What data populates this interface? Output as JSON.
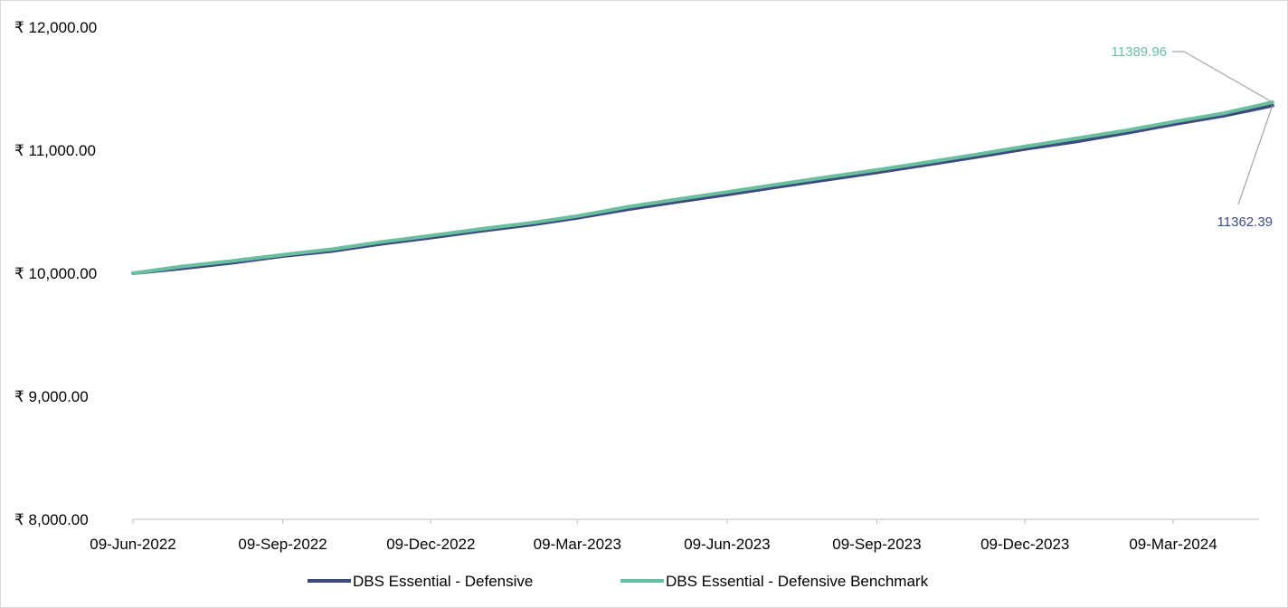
{
  "chart_data": {
    "type": "line",
    "title": "",
    "xlabel": "",
    "ylabel": "",
    "ylim": [
      8000,
      12000
    ],
    "y_ticks": [
      "₹ 8,000.00",
      "₹ 9,000.00",
      "₹ 10,000.00",
      "₹ 11,000.00",
      "₹ 12,000.00"
    ],
    "x_ticks": [
      "09-Jun-2022",
      "09-Sep-2022",
      "09-Dec-2022",
      "09-Mar-2023",
      "09-Jun-2023",
      "09-Sep-2023",
      "09-Dec-2023",
      "09-Mar-2024"
    ],
    "x": [
      "09-Jun-2022",
      "09-Jul-2022",
      "09-Aug-2022",
      "09-Sep-2022",
      "09-Oct-2022",
      "09-Nov-2022",
      "09-Dec-2022",
      "09-Jan-2023",
      "09-Feb-2023",
      "09-Mar-2023",
      "09-Apr-2023",
      "09-May-2023",
      "09-Jun-2023",
      "09-Jul-2023",
      "09-Aug-2023",
      "09-Sep-2023",
      "09-Oct-2023",
      "09-Nov-2023",
      "09-Dec-2023",
      "09-Jan-2024",
      "09-Feb-2024",
      "09-Mar-2024",
      "09-Apr-2024",
      "09-May-2024"
    ],
    "series": [
      {
        "name": "DBS Essential - Defensive",
        "color": "#3e4a7e",
        "values": [
          10000,
          10040,
          10085,
          10140,
          10180,
          10240,
          10290,
          10345,
          10395,
          10450,
          10520,
          10580,
          10640,
          10700,
          10760,
          10820,
          10880,
          10945,
          11010,
          11070,
          11140,
          11210,
          11280,
          11362.39
        ]
      },
      {
        "name": "DBS Essential - Defensive Benchmark",
        "color": "#6abf9e",
        "values": [
          10000,
          10055,
          10100,
          10150,
          10195,
          10255,
          10305,
          10360,
          10410,
          10465,
          10540,
          10600,
          10660,
          10720,
          10780,
          10840,
          10900,
          10965,
          11030,
          11095,
          11160,
          11230,
          11300,
          11389.96
        ]
      }
    ],
    "annotations": [
      {
        "text": "11389.96",
        "series": 1,
        "color": "#6abf9e"
      },
      {
        "text": "11362.39",
        "series": 0,
        "color": "#3e4a7e"
      }
    ],
    "legend_position": "bottom",
    "grid": false
  }
}
